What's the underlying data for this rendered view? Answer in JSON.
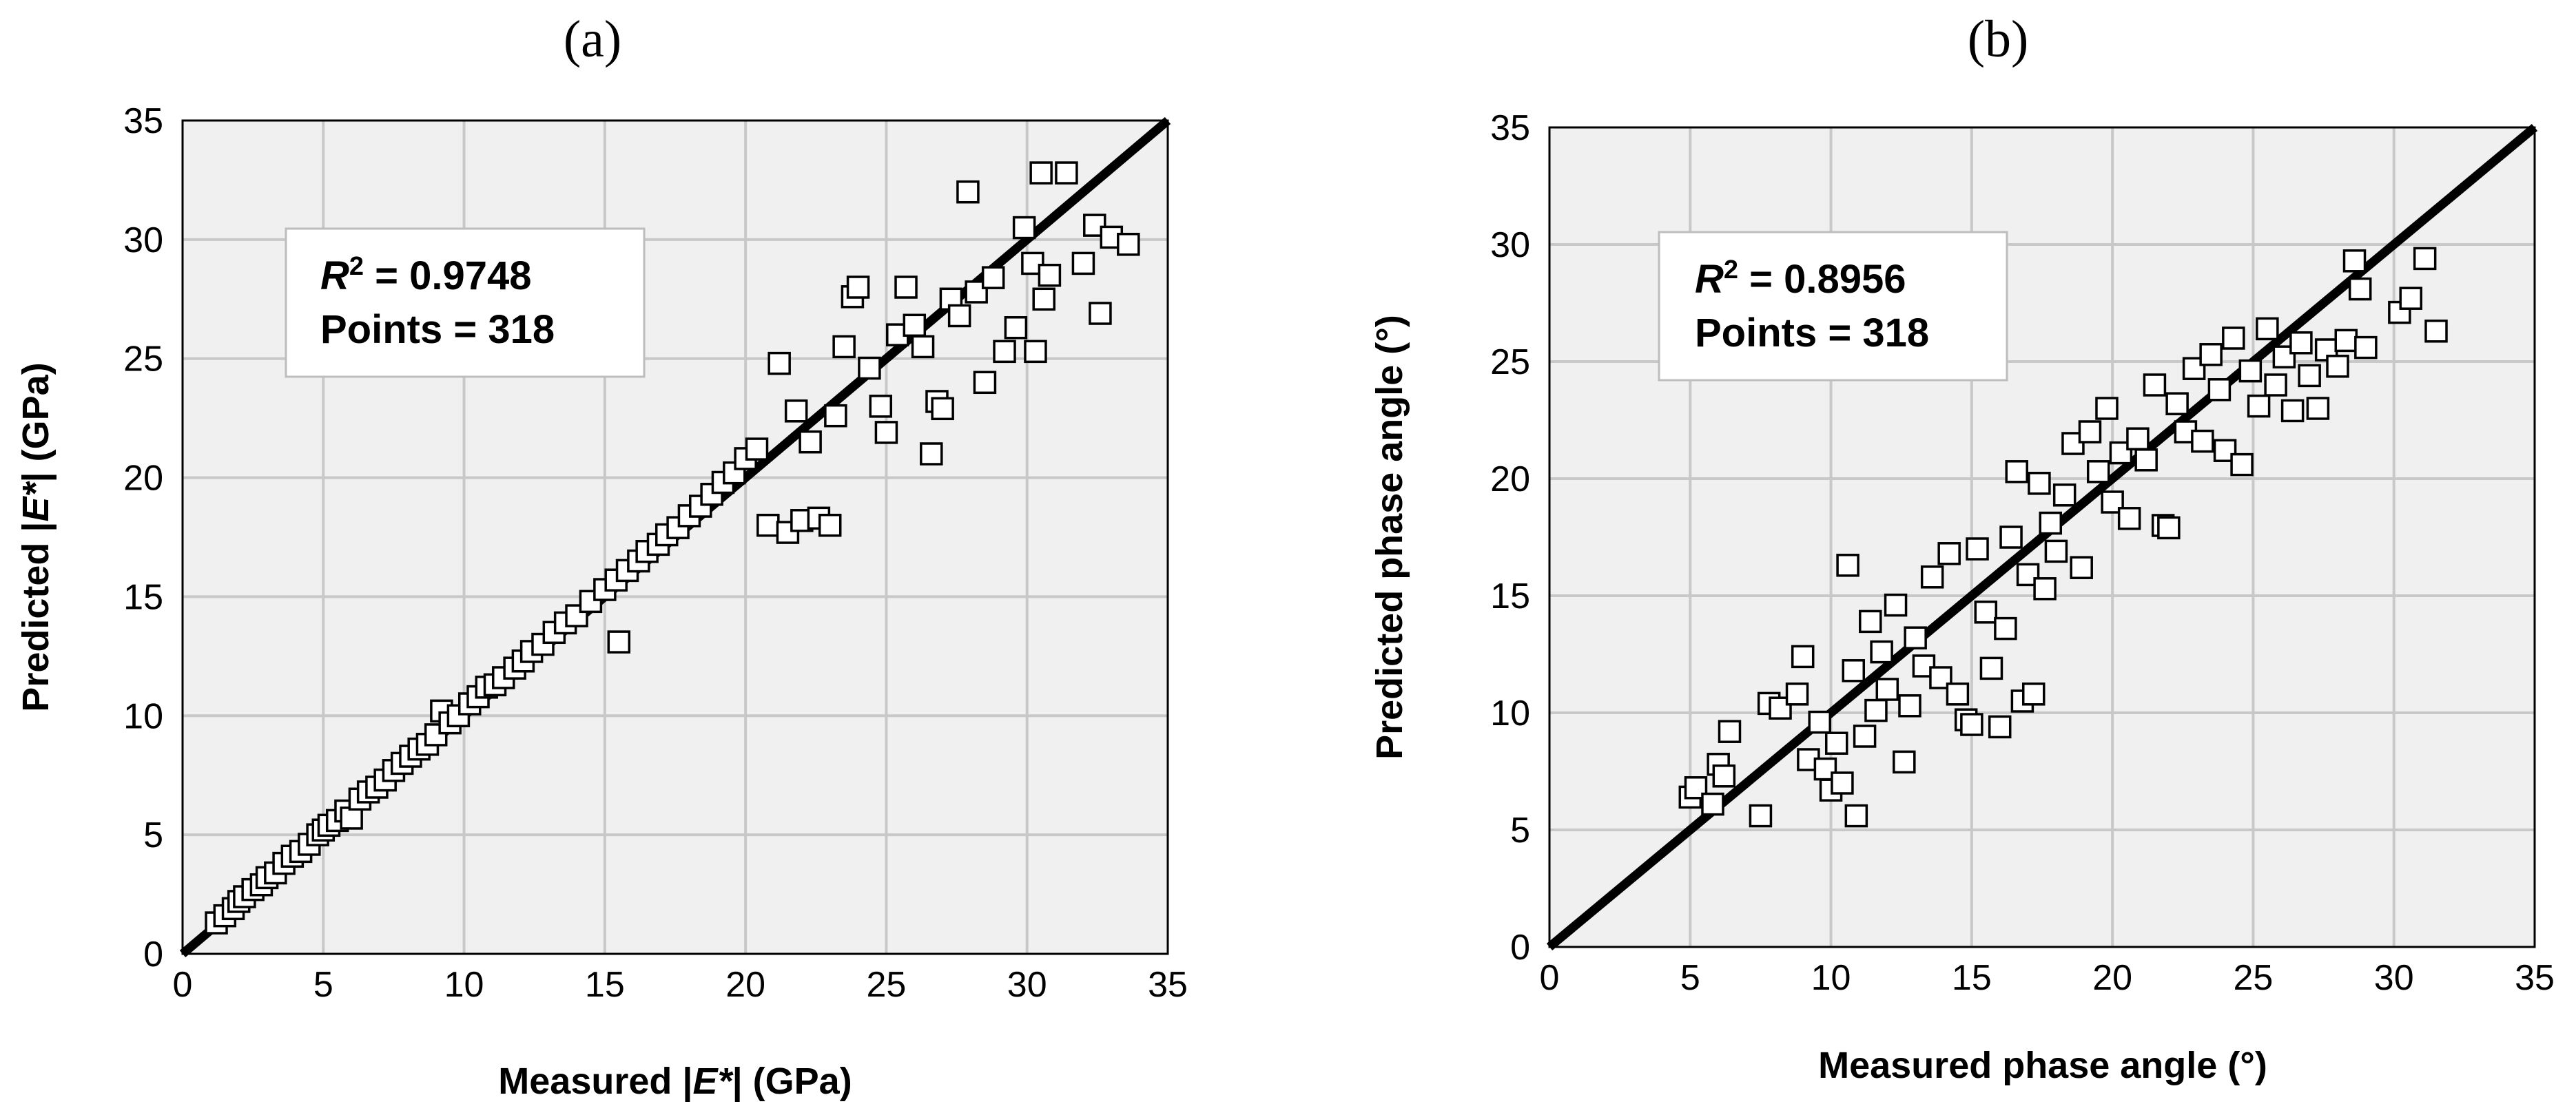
{
  "chart_data": [
    {
      "type": "scatter",
      "panel_label": "(a)",
      "xlabel_pre": "Measured |",
      "xlabel_ital": "E*",
      "xlabel_post": "| (GPa)",
      "ylabel_pre": "Predicted |",
      "ylabel_ital": "E*",
      "ylabel_post": "| (GPa)",
      "xlim": [
        0,
        35
      ],
      "ylim": [
        0,
        35
      ],
      "xticks": [
        "0",
        "5",
        "10",
        "15",
        "20",
        "25",
        "30",
        "35"
      ],
      "yticks": [
        "0",
        "5",
        "10",
        "15",
        "20",
        "25",
        "30",
        "35"
      ],
      "grid": true,
      "reference_line": "y = x",
      "annotation": {
        "r2_label": "R",
        "r2_sup": "2",
        "r2_value": " = 0.9748",
        "points_text": "Points = 318"
      },
      "series": [
        {
          "marker": "open-square",
          "points": [
            [
              1.2,
              1.3
            ],
            [
              1.5,
              1.6
            ],
            [
              1.8,
              1.9
            ],
            [
              2.0,
              2.2
            ],
            [
              2.2,
              2.4
            ],
            [
              2.5,
              2.7
            ],
            [
              2.8,
              2.9
            ],
            [
              3.0,
              3.2
            ],
            [
              3.3,
              3.4
            ],
            [
              3.6,
              3.8
            ],
            [
              3.9,
              4.1
            ],
            [
              4.2,
              4.3
            ],
            [
              4.5,
              4.6
            ],
            [
              4.8,
              5.0
            ],
            [
              5.0,
              5.2
            ],
            [
              5.2,
              5.4
            ],
            [
              5.5,
              5.6
            ],
            [
              5.8,
              6.0
            ],
            [
              6.0,
              5.7
            ],
            [
              6.3,
              6.5
            ],
            [
              6.6,
              6.8
            ],
            [
              6.9,
              7.0
            ],
            [
              7.2,
              7.3
            ],
            [
              7.5,
              7.7
            ],
            [
              7.8,
              8.0
            ],
            [
              8.1,
              8.3
            ],
            [
              8.4,
              8.6
            ],
            [
              8.7,
              8.8
            ],
            [
              9.0,
              9.2
            ],
            [
              9.2,
              10.2
            ],
            [
              9.5,
              9.7
            ],
            [
              9.8,
              10.0
            ],
            [
              10.2,
              10.5
            ],
            [
              10.5,
              10.8
            ],
            [
              10.8,
              11.2
            ],
            [
              11.1,
              11.3
            ],
            [
              11.4,
              11.6
            ],
            [
              11.8,
              12.0
            ],
            [
              12.1,
              12.3
            ],
            [
              12.4,
              12.7
            ],
            [
              12.8,
              13.0
            ],
            [
              13.2,
              13.5
            ],
            [
              13.6,
              13.9
            ],
            [
              14.0,
              14.2
            ],
            [
              14.5,
              14.8
            ],
            [
              15.0,
              15.3
            ],
            [
              15.4,
              15.7
            ],
            [
              15.5,
              13.1
            ],
            [
              15.8,
              16.1
            ],
            [
              16.2,
              16.5
            ],
            [
              16.5,
              16.9
            ],
            [
              16.9,
              17.2
            ],
            [
              17.2,
              17.6
            ],
            [
              17.6,
              17.9
            ],
            [
              18.0,
              18.4
            ],
            [
              18.4,
              18.8
            ],
            [
              18.8,
              19.3
            ],
            [
              19.2,
              19.8
            ],
            [
              19.6,
              20.2
            ],
            [
              20.0,
              20.8
            ],
            [
              20.4,
              21.2
            ],
            [
              20.8,
              18.0
            ],
            [
              21.2,
              24.8
            ],
            [
              21.5,
              17.7
            ],
            [
              21.8,
              22.8
            ],
            [
              22.0,
              18.2
            ],
            [
              22.3,
              21.5
            ],
            [
              22.6,
              18.3
            ],
            [
              23.0,
              18.0
            ],
            [
              23.2,
              22.6
            ],
            [
              23.5,
              25.5
            ],
            [
              23.8,
              27.6
            ],
            [
              24.0,
              28.0
            ],
            [
              24.4,
              24.6
            ],
            [
              24.8,
              23.0
            ],
            [
              25.0,
              21.9
            ],
            [
              25.4,
              26.0
            ],
            [
              25.7,
              28.0
            ],
            [
              26.0,
              26.4
            ],
            [
              26.3,
              25.5
            ],
            [
              26.6,
              21.0
            ],
            [
              26.8,
              23.2
            ],
            [
              27.0,
              22.9
            ],
            [
              27.3,
              27.5
            ],
            [
              27.6,
              26.8
            ],
            [
              27.9,
              32.0
            ],
            [
              28.2,
              27.8
            ],
            [
              28.5,
              24.0
            ],
            [
              28.8,
              28.4
            ],
            [
              29.2,
              25.3
            ],
            [
              29.6,
              26.3
            ],
            [
              29.9,
              30.5
            ],
            [
              30.2,
              29.0
            ],
            [
              30.3,
              25.3
            ],
            [
              30.5,
              32.8
            ],
            [
              30.6,
              27.5
            ],
            [
              30.8,
              28.5
            ],
            [
              31.4,
              32.8
            ],
            [
              32.0,
              29.0
            ],
            [
              32.4,
              30.6
            ],
            [
              32.6,
              26.9
            ],
            [
              33.0,
              30.1
            ],
            [
              33.6,
              29.8
            ]
          ]
        }
      ]
    },
    {
      "type": "scatter",
      "panel_label": "(b)",
      "xlabel_pre": "Measured phase angle (°)",
      "xlabel_ital": "",
      "xlabel_post": "",
      "ylabel_pre": "Predicted phase angle (°)",
      "ylabel_ital": "",
      "ylabel_post": "",
      "xlim": [
        0,
        35
      ],
      "ylim": [
        0,
        35
      ],
      "xticks": [
        "0",
        "5",
        "10",
        "15",
        "20",
        "25",
        "30",
        "35"
      ],
      "yticks": [
        "0",
        "5",
        "10",
        "15",
        "20",
        "25",
        "30",
        "35"
      ],
      "grid": true,
      "reference_line": "y = x",
      "annotation": {
        "r2_label": "R",
        "r2_sup": "2",
        "r2_value": " = 0.8956",
        "points_text": "Points = 318"
      },
      "series": [
        {
          "marker": "open-square",
          "points": [
            [
              5.0,
              6.4
            ],
            [
              5.2,
              6.8
            ],
            [
              5.8,
              6.1
            ],
            [
              6.0,
              7.8
            ],
            [
              6.2,
              7.3
            ],
            [
              6.4,
              9.2
            ],
            [
              7.5,
              5.6
            ],
            [
              7.8,
              10.4
            ],
            [
              8.2,
              10.2
            ],
            [
              8.8,
              10.8
            ],
            [
              9.0,
              12.4
            ],
            [
              9.2,
              8.0
            ],
            [
              9.6,
              9.6
            ],
            [
              9.8,
              7.6
            ],
            [
              10.0,
              6.7
            ],
            [
              10.2,
              8.7
            ],
            [
              10.4,
              7.0
            ],
            [
              10.6,
              16.3
            ],
            [
              10.8,
              11.8
            ],
            [
              10.9,
              5.6
            ],
            [
              11.2,
              9.0
            ],
            [
              11.4,
              13.9
            ],
            [
              11.6,
              10.1
            ],
            [
              11.8,
              12.6
            ],
            [
              12.0,
              11.0
            ],
            [
              12.3,
              14.6
            ],
            [
              12.6,
              7.9
            ],
            [
              12.8,
              10.3
            ],
            [
              13.0,
              13.2
            ],
            [
              13.3,
              12.0
            ],
            [
              13.6,
              15.8
            ],
            [
              13.9,
              11.5
            ],
            [
              14.2,
              16.8
            ],
            [
              14.5,
              10.8
            ],
            [
              14.8,
              9.7
            ],
            [
              15.0,
              9.5
            ],
            [
              15.2,
              17.0
            ],
            [
              15.5,
              14.3
            ],
            [
              15.7,
              11.9
            ],
            [
              16.0,
              9.4
            ],
            [
              16.2,
              13.6
            ],
            [
              16.4,
              17.5
            ],
            [
              16.6,
              20.3
            ],
            [
              16.8,
              10.5
            ],
            [
              17.0,
              15.9
            ],
            [
              17.2,
              10.8
            ],
            [
              17.4,
              19.8
            ],
            [
              17.6,
              15.3
            ],
            [
              17.8,
              18.1
            ],
            [
              18.0,
              16.9
            ],
            [
              18.3,
              19.3
            ],
            [
              18.6,
              21.5
            ],
            [
              18.9,
              16.2
            ],
            [
              19.2,
              22.0
            ],
            [
              19.5,
              20.3
            ],
            [
              19.8,
              23.0
            ],
            [
              20.0,
              19.0
            ],
            [
              20.3,
              21.1
            ],
            [
              20.6,
              18.3
            ],
            [
              20.9,
              21.7
            ],
            [
              21.2,
              20.8
            ],
            [
              21.5,
              24.0
            ],
            [
              21.8,
              18.0
            ],
            [
              22.0,
              17.9
            ],
            [
              22.3,
              23.2
            ],
            [
              22.6,
              22.0
            ],
            [
              22.9,
              24.7
            ],
            [
              23.2,
              21.6
            ],
            [
              23.5,
              25.3
            ],
            [
              23.8,
              23.8
            ],
            [
              24.0,
              21.2
            ],
            [
              24.3,
              26.0
            ],
            [
              24.6,
              20.6
            ],
            [
              24.9,
              24.6
            ],
            [
              25.2,
              23.1
            ],
            [
              25.5,
              26.4
            ],
            [
              25.8,
              24.0
            ],
            [
              26.1,
              25.2
            ],
            [
              26.4,
              22.9
            ],
            [
              26.7,
              25.8
            ],
            [
              27.0,
              24.4
            ],
            [
              27.3,
              23.0
            ],
            [
              27.6,
              25.5
            ],
            [
              28.0,
              24.8
            ],
            [
              28.3,
              25.9
            ],
            [
              28.6,
              29.3
            ],
            [
              28.8,
              28.1
            ],
            [
              29.0,
              25.6
            ],
            [
              30.2,
              27.1
            ],
            [
              30.6,
              27.7
            ],
            [
              31.1,
              29.4
            ],
            [
              31.5,
              26.3
            ]
          ]
        }
      ]
    }
  ]
}
